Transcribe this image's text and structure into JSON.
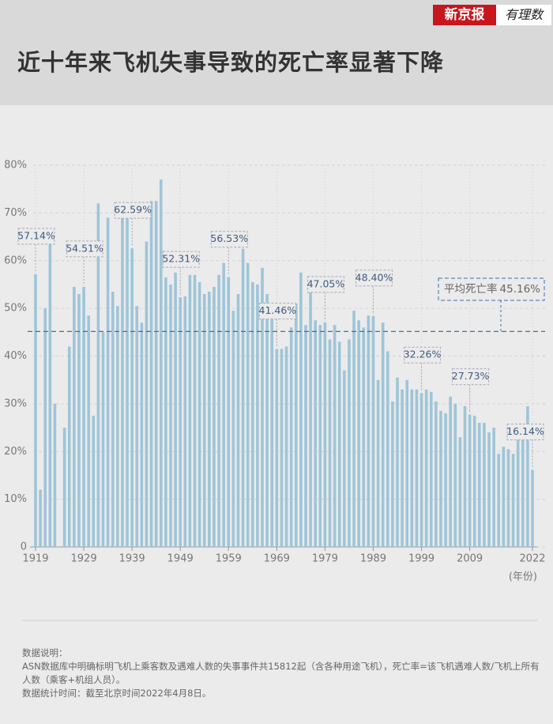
{
  "header": {
    "title": "近十年来飞机失事导致的死亡率显著下降",
    "logo": "新京报",
    "logo2": "有理数"
  },
  "chart_data": {
    "type": "bar",
    "color": "#9ec5d8",
    "x": [
      1919,
      1920,
      1921,
      1922,
      1923,
      1924,
      1925,
      1926,
      1927,
      1928,
      1929,
      1930,
      1931,
      1932,
      1933,
      1934,
      1935,
      1936,
      1937,
      1938,
      1939,
      1940,
      1941,
      1942,
      1943,
      1944,
      1945,
      1946,
      1947,
      1948,
      1949,
      1950,
      1951,
      1952,
      1953,
      1954,
      1955,
      1956,
      1957,
      1958,
      1959,
      1960,
      1961,
      1962,
      1963,
      1964,
      1965,
      1966,
      1967,
      1968,
      1969,
      1970,
      1971,
      1972,
      1973,
      1974,
      1975,
      1976,
      1977,
      1978,
      1979,
      1980,
      1981,
      1982,
      1983,
      1984,
      1985,
      1986,
      1987,
      1988,
      1989,
      1990,
      1991,
      1992,
      1993,
      1994,
      1995,
      1996,
      1997,
      1998,
      1999,
      2000,
      2001,
      2002,
      2003,
      2004,
      2005,
      2006,
      2007,
      2008,
      2009,
      2010,
      2011,
      2012,
      2013,
      2014,
      2015,
      2016,
      2017,
      2018,
      2019,
      2020,
      2021,
      2022
    ],
    "values": [
      57.14,
      12,
      50,
      66.5,
      30,
      null,
      25,
      42,
      54.5,
      53,
      54.51,
      48.5,
      27.5,
      72,
      45,
      69,
      53.5,
      50.5,
      70.5,
      71,
      62.59,
      50.5,
      47,
      64,
      72.5,
      72.5,
      77,
      56.5,
      55,
      57.5,
      52.31,
      52.5,
      57,
      57,
      55.5,
      53,
      53.5,
      54.5,
      57,
      59.5,
      56.53,
      49.5,
      53,
      62.5,
      59.5,
      55.5,
      55,
      58.5,
      53,
      50.5,
      41.46,
      41.5,
      42,
      46,
      51,
      57.5,
      46.5,
      56.5,
      47.5,
      46.5,
      47.05,
      43.5,
      46.5,
      43,
      37,
      43.5,
      49.5,
      47.5,
      46,
      48.5,
      48.4,
      35,
      47,
      41,
      30.5,
      35.5,
      33,
      35,
      33,
      33,
      32.26,
      33,
      32.5,
      30.5,
      28.5,
      28,
      31.5,
      30,
      23,
      29.5,
      27.73,
      27.5,
      26,
      26,
      24,
      25,
      19.5,
      21,
      20.5,
      19.5,
      22.5,
      24,
      29.5,
      16.14
    ],
    "value_labels": [
      "57.14%",
      null,
      null,
      null,
      null,
      null,
      null,
      null,
      null,
      null,
      "54.51%",
      null,
      null,
      null,
      null,
      null,
      null,
      null,
      null,
      null,
      "62.59%",
      null,
      null,
      null,
      null,
      null,
      null,
      null,
      null,
      null,
      "52.31%",
      null,
      null,
      null,
      null,
      null,
      null,
      null,
      null,
      null,
      "56.53%",
      null,
      null,
      null,
      null,
      null,
      null,
      null,
      null,
      null,
      "41.46%",
      null,
      null,
      null,
      null,
      null,
      null,
      null,
      null,
      null,
      "47.05%",
      null,
      null,
      null,
      null,
      null,
      null,
      null,
      null,
      null,
      "48.40%",
      null,
      null,
      null,
      null,
      null,
      null,
      null,
      null,
      null,
      "32.26%",
      null,
      null,
      null,
      null,
      null,
      null,
      null,
      null,
      null,
      "27.73%",
      null,
      null,
      null,
      null,
      null,
      null,
      null,
      null,
      null,
      null,
      null,
      null,
      "16.14%"
    ],
    "xlim": [
      1919,
      2022
    ],
    "xticks": [
      1919,
      1929,
      1939,
      1949,
      1959,
      1969,
      1979,
      1989,
      1999,
      2009,
      2022
    ],
    "x_label": "(年份)",
    "ylim": [
      0,
      80
    ],
    "yticks": [
      0,
      {
        "value": 10,
        "label": "10%"
      },
      {
        "value": 20,
        "label": "20%"
      },
      {
        "value": 30,
        "label": "30%"
      },
      {
        "value": 40,
        "label": "40%"
      },
      {
        "value": 50,
        "label": "50%"
      },
      {
        "value": 60,
        "label": "60%"
      },
      {
        "value": 70,
        "label": "70%"
      },
      {
        "value": 80,
        "label": "80%"
      }
    ],
    "grid": true,
    "average": {
      "label": "平均死亡率",
      "value": 45.16,
      "value_label": "45.16%",
      "color": "#3d6fa6"
    }
  },
  "notes": {
    "heading": "数据说明：",
    "text": "ASN数据库中明确标明飞机上乘客数及遇难人数的失事事件共15812起（含各种用途飞机），死亡率=该飞机遇难人数/飞机上所有人数（乘客+机组人员）。",
    "date": "数据统计时间：截至北京时间2022年4月8日。"
  }
}
